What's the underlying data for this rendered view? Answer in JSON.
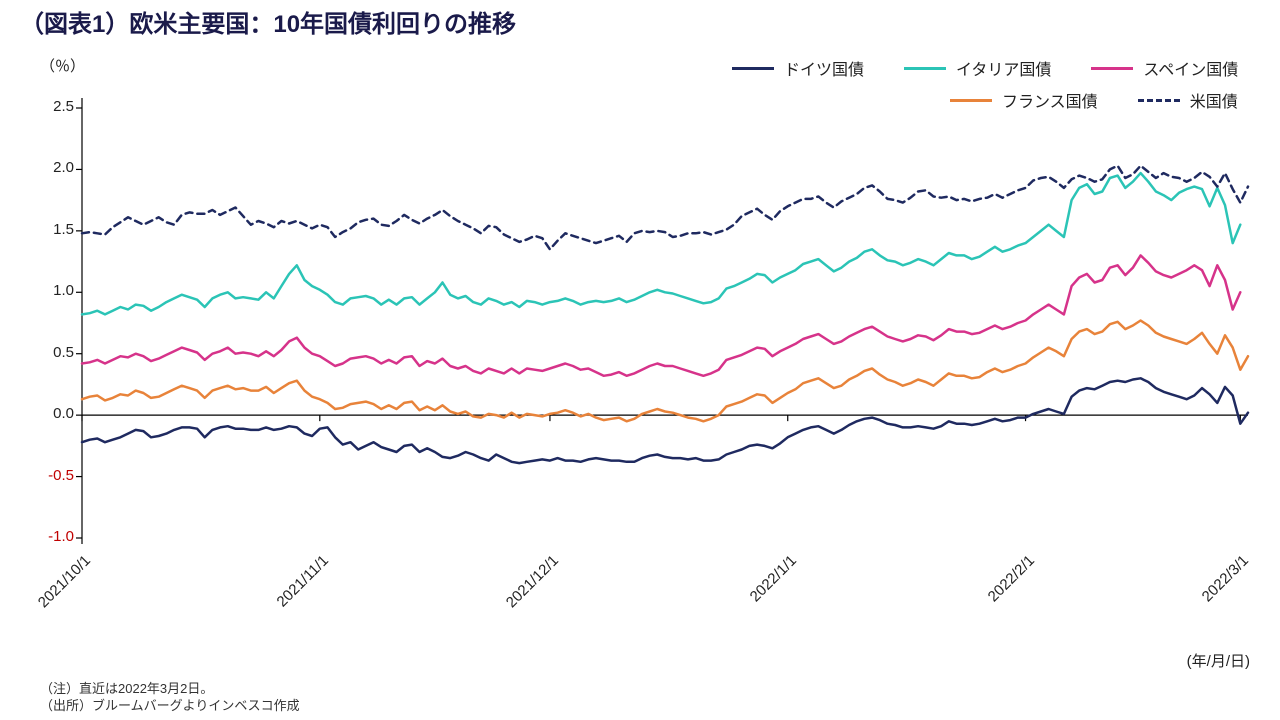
{
  "title": "（図表1）欧米主要国：10年国債利回りの推移",
  "y_unit_label": "（％）",
  "x_unit_label": "(年/月/日)",
  "footnote1": "（注）直近は2022年3月2日。",
  "footnote2": "（出所）ブルームバーグよりインベスコ作成",
  "chart": {
    "type": "line",
    "background_color": "#ffffff",
    "axis_color": "#000000",
    "ylim": [
      -1.0,
      2.5
    ],
    "ytick_step": 0.5,
    "yticks": [
      -1.0,
      -0.5,
      0.0,
      0.5,
      1.0,
      1.5,
      2.0,
      2.5
    ],
    "ytick_labels": [
      "-1.0",
      "-0.5",
      "0.0",
      "0.5",
      "1.0",
      "1.5",
      "2.0",
      "2.5"
    ],
    "ytick_neg_color": "#c00000",
    "ytick_pos_color": "#222222",
    "xticks": [
      "2021/10/1",
      "2021/11/1",
      "2021/12/1",
      "2022/1/1",
      "2022/2/1",
      "2022/3/1"
    ],
    "xtick_positions": [
      0,
      31,
      61,
      92,
      123,
      151
    ],
    "n_points": 153,
    "title_fontsize": 24,
    "label_fontsize": 15,
    "legend_rows": [
      [
        {
          "label": "ドイツ国債",
          "color": "#1f2a60",
          "dash": "solid"
        },
        {
          "label": "イタリア国債",
          "color": "#2bc4b6",
          "dash": "solid"
        },
        {
          "label": "スペイン国債",
          "color": "#d6338a",
          "dash": "solid"
        }
      ],
      [
        {
          "label": "フランス国債",
          "color": "#e8833a",
          "dash": "solid"
        },
        {
          "label": "米国債",
          "color": "#1f2a60",
          "dash": "dashed"
        }
      ]
    ],
    "line_width": 2.5,
    "series": [
      {
        "name": "ドイツ国債",
        "color": "#1f2a60",
        "dash": "solid",
        "values": [
          -0.22,
          -0.2,
          -0.19,
          -0.22,
          -0.2,
          -0.18,
          -0.15,
          -0.12,
          -0.13,
          -0.18,
          -0.17,
          -0.15,
          -0.12,
          -0.1,
          -0.1,
          -0.11,
          -0.18,
          -0.12,
          -0.1,
          -0.09,
          -0.11,
          -0.11,
          -0.12,
          -0.12,
          -0.1,
          -0.12,
          -0.11,
          -0.09,
          -0.1,
          -0.15,
          -0.17,
          -0.11,
          -0.1,
          -0.18,
          -0.24,
          -0.22,
          -0.28,
          -0.25,
          -0.22,
          -0.26,
          -0.28,
          -0.3,
          -0.25,
          -0.24,
          -0.3,
          -0.27,
          -0.3,
          -0.34,
          -0.35,
          -0.33,
          -0.3,
          -0.32,
          -0.35,
          -0.37,
          -0.32,
          -0.35,
          -0.38,
          -0.39,
          -0.38,
          -0.37,
          -0.36,
          -0.37,
          -0.35,
          -0.37,
          -0.37,
          -0.38,
          -0.36,
          -0.35,
          -0.36,
          -0.37,
          -0.37,
          -0.38,
          -0.38,
          -0.35,
          -0.33,
          -0.32,
          -0.34,
          -0.35,
          -0.35,
          -0.36,
          -0.35,
          -0.37,
          -0.37,
          -0.36,
          -0.32,
          -0.3,
          -0.28,
          -0.25,
          -0.24,
          -0.25,
          -0.27,
          -0.23,
          -0.18,
          -0.15,
          -0.12,
          -0.1,
          -0.09,
          -0.12,
          -0.15,
          -0.12,
          -0.08,
          -0.05,
          -0.03,
          -0.02,
          -0.04,
          -0.07,
          -0.08,
          -0.1,
          -0.1,
          -0.09,
          -0.1,
          -0.11,
          -0.09,
          -0.05,
          -0.07,
          -0.07,
          -0.08,
          -0.07,
          -0.05,
          -0.03,
          -0.05,
          -0.04,
          -0.02,
          -0.02,
          0.01,
          0.03,
          0.05,
          0.03,
          0.01,
          0.15,
          0.2,
          0.22,
          0.21,
          0.24,
          0.27,
          0.28,
          0.27,
          0.29,
          0.3,
          0.27,
          0.22,
          0.19,
          0.17,
          0.15,
          0.13,
          0.16,
          0.22,
          0.17,
          0.1,
          0.23,
          0.16,
          -0.07,
          0.02
        ]
      },
      {
        "name": "イタリア国債",
        "color": "#2bc4b6",
        "dash": "solid",
        "values": [
          0.82,
          0.83,
          0.85,
          0.82,
          0.85,
          0.88,
          0.86,
          0.9,
          0.89,
          0.85,
          0.88,
          0.92,
          0.95,
          0.98,
          0.96,
          0.94,
          0.88,
          0.95,
          0.98,
          1.0,
          0.95,
          0.96,
          0.95,
          0.94,
          1.0,
          0.95,
          1.05,
          1.15,
          1.22,
          1.1,
          1.05,
          1.02,
          0.98,
          0.92,
          0.9,
          0.95,
          0.96,
          0.97,
          0.95,
          0.9,
          0.94,
          0.9,
          0.95,
          0.96,
          0.9,
          0.95,
          1.0,
          1.08,
          0.98,
          0.95,
          0.97,
          0.92,
          0.9,
          0.95,
          0.93,
          0.9,
          0.92,
          0.88,
          0.93,
          0.92,
          0.9,
          0.92,
          0.93,
          0.95,
          0.93,
          0.9,
          0.92,
          0.93,
          0.92,
          0.93,
          0.95,
          0.92,
          0.94,
          0.97,
          1.0,
          1.02,
          1.0,
          0.99,
          0.97,
          0.95,
          0.93,
          0.91,
          0.92,
          0.95,
          1.03,
          1.05,
          1.08,
          1.11,
          1.15,
          1.14,
          1.08,
          1.12,
          1.15,
          1.18,
          1.23,
          1.25,
          1.27,
          1.22,
          1.17,
          1.2,
          1.25,
          1.28,
          1.33,
          1.35,
          1.3,
          1.26,
          1.25,
          1.22,
          1.24,
          1.27,
          1.25,
          1.22,
          1.27,
          1.32,
          1.3,
          1.3,
          1.27,
          1.29,
          1.33,
          1.37,
          1.33,
          1.35,
          1.38,
          1.4,
          1.45,
          1.5,
          1.55,
          1.5,
          1.45,
          1.75,
          1.85,
          1.88,
          1.8,
          1.82,
          1.93,
          1.95,
          1.85,
          1.9,
          1.97,
          1.9,
          1.82,
          1.79,
          1.75,
          1.81,
          1.84,
          1.86,
          1.84,
          1.7,
          1.85,
          1.71,
          1.4,
          1.55
        ]
      },
      {
        "name": "スペイン国債",
        "color": "#d6338a",
        "dash": "solid",
        "values": [
          0.42,
          0.43,
          0.45,
          0.42,
          0.45,
          0.48,
          0.47,
          0.5,
          0.48,
          0.44,
          0.46,
          0.49,
          0.52,
          0.55,
          0.53,
          0.51,
          0.45,
          0.5,
          0.52,
          0.55,
          0.5,
          0.51,
          0.5,
          0.48,
          0.52,
          0.48,
          0.53,
          0.6,
          0.63,
          0.55,
          0.5,
          0.48,
          0.44,
          0.4,
          0.42,
          0.46,
          0.47,
          0.48,
          0.46,
          0.42,
          0.45,
          0.42,
          0.47,
          0.48,
          0.4,
          0.44,
          0.42,
          0.46,
          0.4,
          0.38,
          0.4,
          0.36,
          0.34,
          0.38,
          0.36,
          0.34,
          0.38,
          0.34,
          0.38,
          0.37,
          0.36,
          0.38,
          0.4,
          0.42,
          0.4,
          0.37,
          0.38,
          0.35,
          0.32,
          0.33,
          0.35,
          0.32,
          0.34,
          0.37,
          0.4,
          0.42,
          0.4,
          0.4,
          0.38,
          0.36,
          0.34,
          0.32,
          0.34,
          0.37,
          0.45,
          0.47,
          0.49,
          0.52,
          0.55,
          0.54,
          0.48,
          0.52,
          0.55,
          0.58,
          0.62,
          0.64,
          0.66,
          0.62,
          0.58,
          0.6,
          0.64,
          0.67,
          0.7,
          0.72,
          0.68,
          0.64,
          0.62,
          0.6,
          0.62,
          0.65,
          0.64,
          0.61,
          0.65,
          0.7,
          0.68,
          0.68,
          0.66,
          0.67,
          0.7,
          0.73,
          0.7,
          0.72,
          0.75,
          0.77,
          0.82,
          0.86,
          0.9,
          0.86,
          0.82,
          1.05,
          1.12,
          1.15,
          1.08,
          1.1,
          1.2,
          1.22,
          1.14,
          1.2,
          1.3,
          1.24,
          1.17,
          1.14,
          1.12,
          1.15,
          1.18,
          1.22,
          1.18,
          1.05,
          1.22,
          1.1,
          0.86,
          1.0
        ]
      },
      {
        "name": "フランス国債",
        "color": "#e8833a",
        "dash": "solid",
        "values": [
          0.13,
          0.15,
          0.16,
          0.12,
          0.14,
          0.17,
          0.16,
          0.2,
          0.18,
          0.14,
          0.15,
          0.18,
          0.21,
          0.24,
          0.22,
          0.2,
          0.14,
          0.2,
          0.22,
          0.24,
          0.21,
          0.22,
          0.2,
          0.2,
          0.23,
          0.18,
          0.22,
          0.26,
          0.28,
          0.2,
          0.15,
          0.13,
          0.1,
          0.05,
          0.06,
          0.09,
          0.1,
          0.11,
          0.09,
          0.05,
          0.08,
          0.05,
          0.1,
          0.11,
          0.04,
          0.07,
          0.04,
          0.08,
          0.03,
          0.01,
          0.03,
          -0.01,
          -0.02,
          0.01,
          0.0,
          -0.02,
          0.02,
          -0.02,
          0.01,
          0.0,
          -0.01,
          0.01,
          0.02,
          0.04,
          0.02,
          -0.01,
          0.01,
          -0.02,
          -0.04,
          -0.03,
          -0.02,
          -0.05,
          -0.03,
          0.01,
          0.03,
          0.05,
          0.03,
          0.02,
          0.0,
          -0.02,
          -0.03,
          -0.05,
          -0.03,
          0.0,
          0.07,
          0.09,
          0.11,
          0.14,
          0.17,
          0.16,
          0.1,
          0.14,
          0.18,
          0.21,
          0.26,
          0.28,
          0.3,
          0.26,
          0.22,
          0.24,
          0.29,
          0.32,
          0.36,
          0.38,
          0.33,
          0.29,
          0.27,
          0.24,
          0.26,
          0.29,
          0.27,
          0.24,
          0.29,
          0.34,
          0.32,
          0.32,
          0.3,
          0.31,
          0.35,
          0.38,
          0.35,
          0.37,
          0.4,
          0.42,
          0.47,
          0.51,
          0.55,
          0.52,
          0.48,
          0.62,
          0.68,
          0.7,
          0.66,
          0.68,
          0.74,
          0.76,
          0.7,
          0.73,
          0.77,
          0.73,
          0.67,
          0.64,
          0.62,
          0.6,
          0.58,
          0.62,
          0.67,
          0.58,
          0.5,
          0.65,
          0.55,
          0.37,
          0.48
        ]
      },
      {
        "name": "米国債",
        "color": "#1f2a60",
        "dash": "dashed",
        "values": [
          1.48,
          1.49,
          1.48,
          1.47,
          1.53,
          1.57,
          1.61,
          1.58,
          1.55,
          1.58,
          1.61,
          1.57,
          1.55,
          1.63,
          1.65,
          1.64,
          1.64,
          1.67,
          1.63,
          1.66,
          1.69,
          1.62,
          1.55,
          1.58,
          1.56,
          1.53,
          1.58,
          1.56,
          1.58,
          1.55,
          1.52,
          1.55,
          1.53,
          1.45,
          1.49,
          1.52,
          1.57,
          1.59,
          1.6,
          1.55,
          1.54,
          1.58,
          1.63,
          1.59,
          1.56,
          1.6,
          1.63,
          1.67,
          1.62,
          1.58,
          1.55,
          1.52,
          1.48,
          1.54,
          1.53,
          1.47,
          1.44,
          1.41,
          1.43,
          1.46,
          1.44,
          1.35,
          1.42,
          1.48,
          1.46,
          1.44,
          1.42,
          1.4,
          1.42,
          1.44,
          1.46,
          1.41,
          1.48,
          1.5,
          1.49,
          1.5,
          1.49,
          1.45,
          1.46,
          1.48,
          1.48,
          1.49,
          1.47,
          1.49,
          1.51,
          1.55,
          1.62,
          1.65,
          1.68,
          1.63,
          1.59,
          1.66,
          1.7,
          1.73,
          1.76,
          1.76,
          1.78,
          1.73,
          1.69,
          1.74,
          1.77,
          1.8,
          1.85,
          1.87,
          1.82,
          1.76,
          1.75,
          1.73,
          1.77,
          1.82,
          1.83,
          1.78,
          1.77,
          1.78,
          1.75,
          1.76,
          1.74,
          1.76,
          1.77,
          1.8,
          1.77,
          1.8,
          1.83,
          1.85,
          1.91,
          1.93,
          1.94,
          1.9,
          1.85,
          1.92,
          1.95,
          1.93,
          1.9,
          1.92,
          2.0,
          2.03,
          1.93,
          1.96,
          2.03,
          1.98,
          1.93,
          1.97,
          1.94,
          1.93,
          1.9,
          1.93,
          1.98,
          1.94,
          1.86,
          1.97,
          1.84,
          1.73,
          1.86
        ]
      }
    ]
  }
}
